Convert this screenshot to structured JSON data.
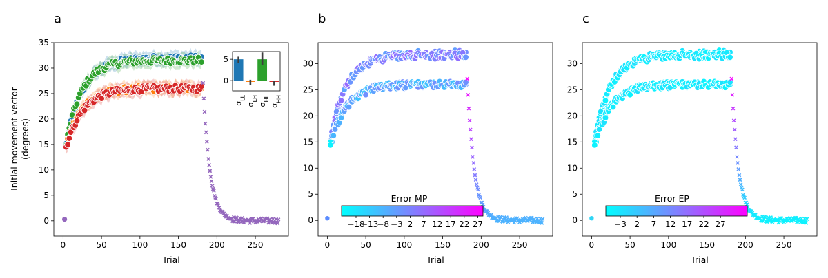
{
  "chart_data": [
    {
      "panel": "a",
      "type": "scatter",
      "xlabel": "Trial",
      "ylabel": "Initial movement vector (degrees)",
      "ylabel_lines": [
        "Initial movement vector",
        "(degrees)"
      ],
      "xlim": [
        -12,
        293
      ],
      "ylim": [
        -3,
        35
      ],
      "xticks": [
        0,
        50,
        100,
        150,
        200,
        250
      ],
      "yticks": [
        0,
        5,
        10,
        15,
        20,
        25,
        30,
        35
      ],
      "colors": {
        "LL": "#1f77b4",
        "LH": "#ff7f0e",
        "HL": "#2ca02c",
        "HH": "#d62728",
        "washout": "#9467bd"
      },
      "series": [
        {
          "key": "LL",
          "color": "#1f77b4",
          "x_range": [
            4,
            180
          ],
          "model": {
            "a": 15.0,
            "b": 17.0,
            "tau": 22
          }
        },
        {
          "key": "HL",
          "color": "#2ca02c",
          "x_range": [
            4,
            180
          ],
          "model": {
            "a": 15.0,
            "b": 16.5,
            "tau": 20
          }
        },
        {
          "key": "LH",
          "color": "#ff7f0e",
          "x_range": [
            4,
            180
          ],
          "model": {
            "a": 14.5,
            "b": 11.5,
            "tau": 20
          }
        },
        {
          "key": "HH",
          "color": "#d62728",
          "x_range": [
            4,
            180
          ],
          "model": {
            "a": 14.5,
            "b": 11.5,
            "tau": 22
          }
        }
      ],
      "washout": {
        "marker": "x",
        "color": "#9467bd",
        "x_range": [
          182,
          280
        ],
        "start_value": 27,
        "tau": 9
      },
      "first_trial": {
        "x": 2,
        "y": 0.3,
        "color": "#9467bd"
      },
      "inset": {
        "type": "bar",
        "categories": [
          "σLL",
          "σLH",
          "σHL",
          "σHH"
        ],
        "category_labels": [
          {
            "base": "σ",
            "sub": "LL"
          },
          {
            "base": "σ",
            "sub": "LH"
          },
          {
            "base": "σ",
            "sub": "HL"
          },
          {
            "base": "σ",
            "sub": "HH"
          }
        ],
        "values": [
          5.0,
          -0.3,
          5.0,
          -0.3
        ],
        "errors": [
          [
            4.2,
            5.6
          ],
          [
            -1.1,
            0.2
          ],
          [
            3.7,
            6.6
          ],
          [
            -1.2,
            -0.1
          ]
        ],
        "colors": [
          "#1f77b4",
          "#ff7f0e",
          "#2ca02c",
          "#d62728"
        ],
        "ylim": [
          -2.4,
          6.8
        ],
        "yticks": [
          0,
          5
        ]
      }
    },
    {
      "panel": "b",
      "type": "scatter",
      "xlabel": "Trial",
      "xlim": [
        -12,
        293
      ],
      "ylim": [
        -3,
        34
      ],
      "xticks": [
        0,
        50,
        100,
        150,
        200,
        250
      ],
      "yticks": [
        0,
        5,
        10,
        15,
        20,
        25,
        30
      ],
      "colorbar": {
        "label": "Error MP",
        "ticks": [
          "−18",
          "−13",
          "−8",
          "−3",
          "2",
          "7",
          "12",
          "17",
          "22",
          "27"
        ],
        "cmap": [
          "#00ffff",
          "#ff00ff"
        ]
      }
    },
    {
      "panel": "c",
      "type": "scatter",
      "xlabel": "Trial",
      "xlim": [
        -12,
        293
      ],
      "ylim": [
        -3,
        34
      ],
      "xticks": [
        0,
        50,
        100,
        150,
        200,
        250
      ],
      "yticks": [
        0,
        5,
        10,
        15,
        20,
        25,
        30
      ],
      "colorbar": {
        "label": "Error EP",
        "ticks": [
          "−3",
          "2",
          "7",
          "12",
          "17",
          "22",
          "27"
        ],
        "cmap": [
          "#00ffff",
          "#ff00ff"
        ]
      }
    }
  ]
}
